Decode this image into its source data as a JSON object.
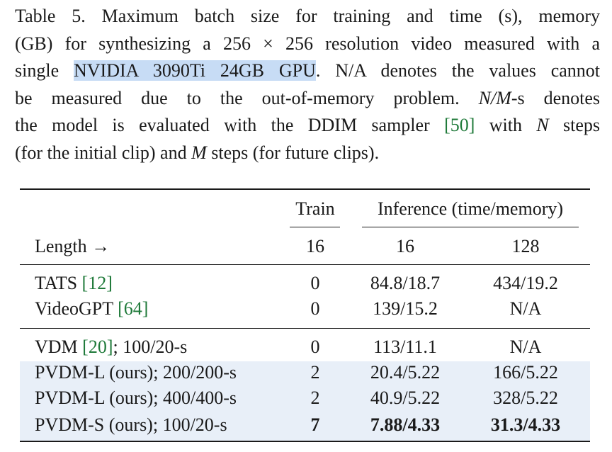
{
  "caption": {
    "prefix": "Table 5. Maximum batch size for training and time (s), memory",
    "line2": "(GB) for synthesizing a 256 × 256 resolution video measured with a",
    "line3_pre": "single ",
    "line3_highlight": "NVIDIA 3090Ti 24GB GPU",
    "line3_post": ". N/A denotes the values cannot",
    "line4_pre": "be measured due to the out-of-memory problem. ",
    "line4_math": "N/M",
    "line4_post": "-s denotes",
    "line5_pre": "the model is evaluated with the DDIM sampler ",
    "line5_cite": "[50]",
    "line5_mid": " with ",
    "line5_math": "N",
    "line5_post": " steps",
    "line6_pre": "(for the initial clip) and ",
    "line6_math": "M",
    "line6_post": " steps (for future clips)."
  },
  "table": {
    "header_train": "Train",
    "header_inference": "Inference (time/memory)",
    "length_label": "Length →",
    "len_train": "16",
    "len_inf1": "16",
    "len_inf2": "128",
    "rows": [
      {
        "name": "TATS ",
        "cite": "[12]",
        "suffix": "",
        "train": "0",
        "inf16": "84.8/18.7",
        "inf128": "434/19.2",
        "highlight": false,
        "bold": false
      },
      {
        "name": "VideoGPT ",
        "cite": "[64]",
        "suffix": "",
        "train": "0",
        "inf16": "139/15.2",
        "inf128": "N/A",
        "highlight": false,
        "bold": false
      },
      {
        "name": "VDM ",
        "cite": "[20]",
        "suffix": "; 100/20-s",
        "train": "0",
        "inf16": "113/11.1",
        "inf128": "N/A",
        "highlight": false,
        "bold": false
      },
      {
        "name": "PVDM-L (ours); 200/200-s",
        "cite": "",
        "suffix": "",
        "train": "2",
        "inf16": "20.4/5.22",
        "inf128": "166/5.22",
        "highlight": true,
        "bold": false
      },
      {
        "name": "PVDM-L (ours); 400/400-s",
        "cite": "",
        "suffix": "",
        "train": "2",
        "inf16": "40.9/5.22",
        "inf128": "328/5.22",
        "highlight": true,
        "bold": false
      },
      {
        "name": "PVDM-S (ours); 100/20-s",
        "cite": "",
        "suffix": "",
        "train": "7",
        "inf16": "7.88/4.33",
        "inf128": "31.3/4.33",
        "highlight": true,
        "bold": true
      }
    ]
  }
}
